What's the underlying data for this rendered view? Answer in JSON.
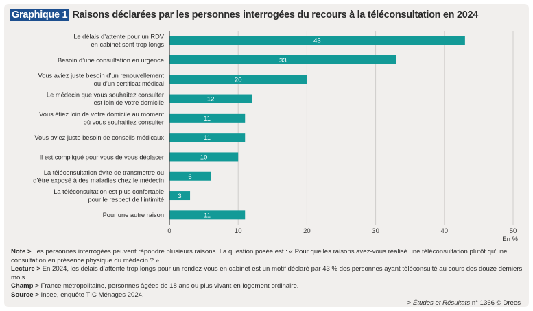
{
  "title": {
    "badge": "Graphique 1",
    "text": "Raisons déclarées par les personnes interrogées du recours à la téléconsultation en 2024"
  },
  "chart_data": {
    "type": "bar",
    "orientation": "horizontal",
    "categories": [
      [
        "Le délais d’attente pour un RDV",
        "en cabinet sont trop longs"
      ],
      [
        "Besoin d’une consultation en urgence"
      ],
      [
        "Vous aviez juste besoin d’un renouvellement",
        "ou d’un certificat médical"
      ],
      [
        "Le médecin que vous souhaitez consulter",
        "est loin de votre domicile"
      ],
      [
        "Vous étiez loin de votre domicile au moment",
        "où vous souhaitiez consulter"
      ],
      [
        "Vous aviez juste besoin de conseils médicaux"
      ],
      [
        "Il est compliqué pour vous de vous déplacer"
      ],
      [
        "La téléconsultation évite de transmettre ou",
        "d’être exposé à des maladies chez le médecin"
      ],
      [
        "La téléconsultation est plus confortable",
        "pour le respect de l’intimité"
      ],
      [
        "Pour une autre raison"
      ]
    ],
    "values": [
      43,
      33,
      20,
      12,
      11,
      11,
      10,
      6,
      3,
      11
    ],
    "xlim": [
      0,
      50
    ],
    "xticks": [
      0,
      10,
      20,
      30,
      40,
      50
    ],
    "xunit": "En %",
    "grid": "vertical",
    "bar_color": "#139a97"
  },
  "notes": [
    {
      "label": "Note >",
      "text": " Les personnes interrogées peuvent répondre plusieurs raisons. La question posée est : « Pour quelles raisons avez-vous réalisé une téléconsultation plutôt qu’une consultation en présence physique du médecin ? »."
    },
    {
      "label": "Lecture >",
      "text": " En 2024, les délais d’attente trop longs pour un rendez-vous en cabinet est un motif déclaré par 43 % des personnes ayant téléconsulté au cours des douze derniers mois."
    },
    {
      "label": "Champ >",
      "text": " France métropolitaine, personnes âgées de 18 ans ou plus vivant en logement ordinaire."
    },
    {
      "label": "Source >",
      "text": " Insee, enquête TIC Ménages 2024."
    }
  ],
  "credit": {
    "prefix": "> ",
    "publication": "Études et Résultats",
    "suffix": " n° 1366 © Drees"
  }
}
